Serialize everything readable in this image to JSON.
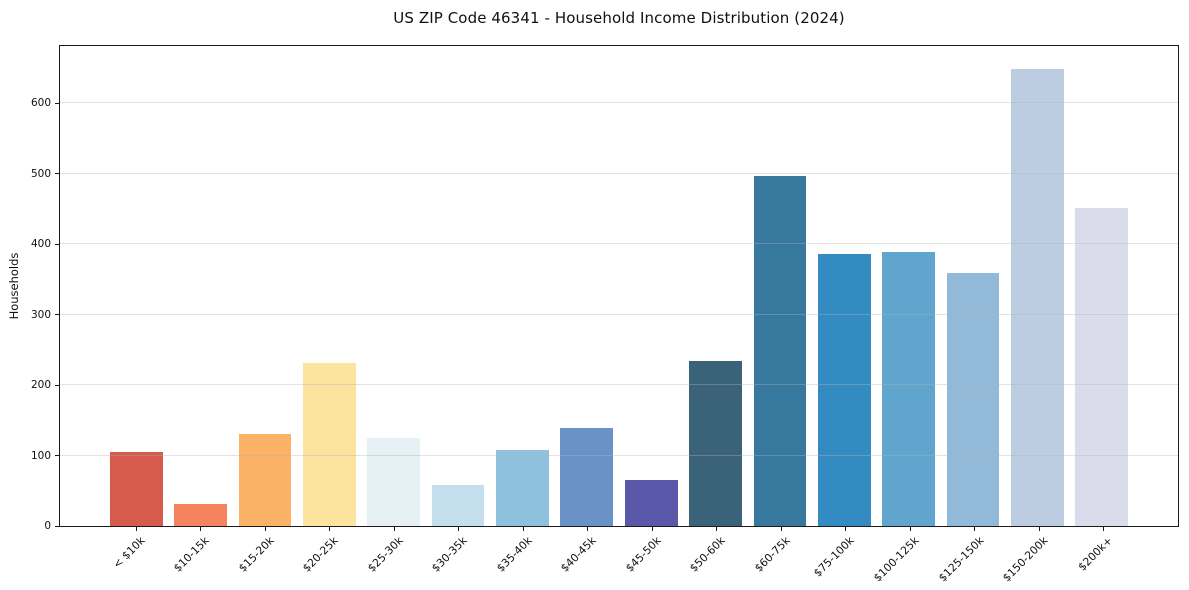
{
  "chart_data": {
    "type": "bar",
    "title": "US ZIP Code 46341 - Household Income Distribution (2024)",
    "xlabel": "",
    "ylabel": "Households",
    "categories": [
      "< $10k",
      "$10-15k",
      "$15-20k",
      "$20-25k",
      "$25-30k",
      "$30-35k",
      "$35-40k",
      "$40-45k",
      "$45-50k",
      "$50-60k",
      "$60-75k",
      "$75-100k",
      "$100-125k",
      "$125-150k",
      "$150-200k",
      "$200k+"
    ],
    "values": [
      105,
      31,
      130,
      231,
      125,
      58,
      108,
      139,
      65,
      234,
      497,
      386,
      389,
      359,
      648,
      451
    ],
    "bar_colors": [
      "#d65a4e",
      "#f5845e",
      "#fbb166",
      "#fde49e",
      "#e6f1f5",
      "#c3dfed",
      "#8fc0dc",
      "#6992c6",
      "#5a58a8",
      "#3a6278",
      "#37789f",
      "#348bc1",
      "#5fa5ce",
      "#92b9d8",
      "#bccde2",
      "#dadcec"
    ],
    "yticks": [
      0,
      100,
      200,
      300,
      400,
      500,
      600
    ],
    "ylim": [
      0,
      681
    ],
    "grid": "horizontal",
    "gridline_color": "#e8e8e8",
    "x_tick_rotation_deg": 45,
    "legend": "none",
    "plot_background": "#ffffff"
  }
}
